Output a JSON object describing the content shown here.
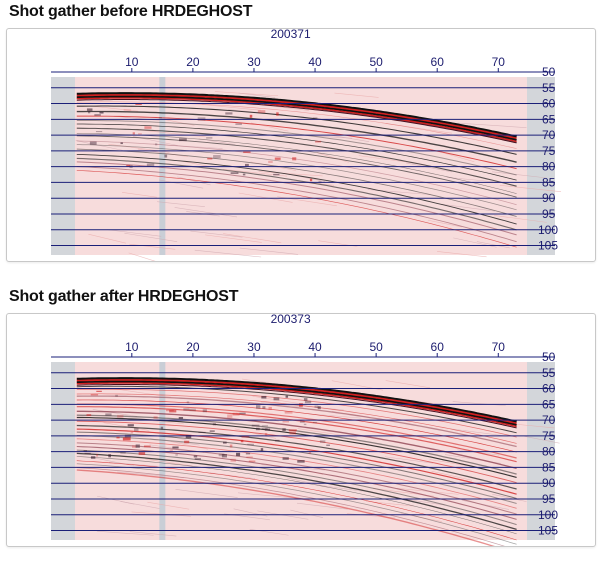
{
  "panels": [
    {
      "title": "Shot gather before HRDEGHOST",
      "header_label": "200371",
      "x_ticks": [
        10,
        20,
        30,
        40,
        50,
        60,
        70
      ],
      "y_ticks": [
        50,
        55,
        60,
        65,
        70,
        75,
        80,
        85,
        90,
        95,
        100,
        105
      ]
    },
    {
      "title": "Shot gather after HRDEGHOST",
      "header_label": "200373",
      "x_ticks": [
        10,
        20,
        30,
        40,
        50,
        60,
        70
      ],
      "y_ticks": [
        50,
        55,
        60,
        65,
        70,
        75,
        80,
        85,
        90,
        95,
        100,
        105
      ]
    }
  ],
  "colors": {
    "trace_area": "#f7dcdc",
    "frame_gray": "#d3d6da",
    "grid_line": "#1a1f78",
    "event_red": "#d02020",
    "event_black": "#111111"
  }
}
